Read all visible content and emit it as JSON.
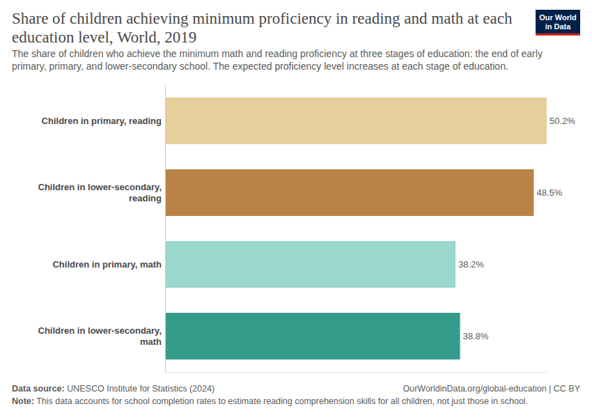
{
  "chart_data": {
    "type": "bar",
    "orientation": "horizontal",
    "title": "Share of children achieving minimum proficiency in reading and math at each education level, World, 2019",
    "subtitle": "The share of children who achieve the minimum math and reading proficiency at three stages of education: the end of early primary, primary, and lower-secondary school. The expected proficiency level increases at each stage of education.",
    "categories": [
      "Children in primary, reading",
      "Children in lower-secondary, reading",
      "Children in primary, math",
      "Children in lower-secondary, math"
    ],
    "values": [
      50.2,
      48.5,
      38.2,
      38.8
    ],
    "value_labels": [
      "50.2%",
      "48.5%",
      "38.2%",
      "38.8%"
    ],
    "colors": [
      "#e5cf9a",
      "#b98347",
      "#9ad7cc",
      "#359c8c"
    ],
    "xlim": [
      0,
      50.2
    ],
    "data_labels": true,
    "tick_labels": "y",
    "grid": false,
    "source_label": "Data source:",
    "source": "UNESCO Institute for Statistics (2024)",
    "credit": "OurWorldinData.org/global-education | CC BY",
    "note_label": "Note:",
    "note": "This data accounts for school completion rates to estimate reading comprehension skills for all children, not just those in school.",
    "logo": [
      "Our World",
      "in Data"
    ]
  }
}
